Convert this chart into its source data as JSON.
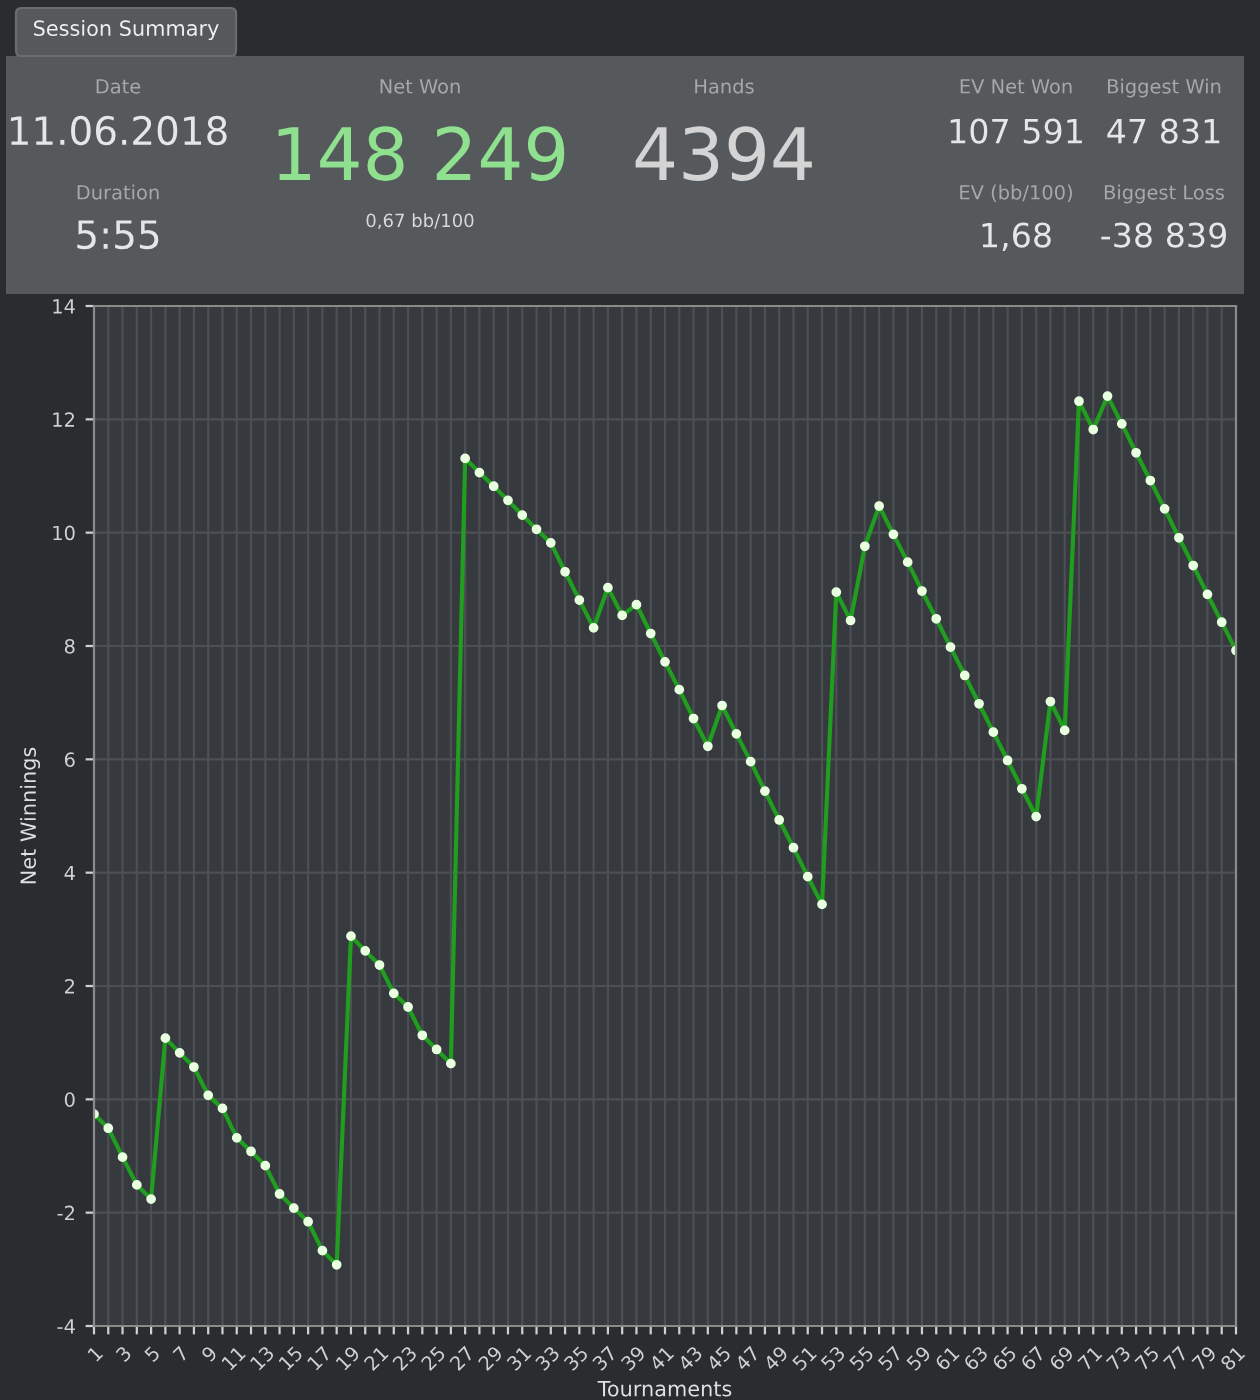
{
  "chart_data": [
    {
      "type": "other",
      "title": "Session Summary",
      "annotations": [
        "Date",
        "11.06.2018",
        "Duration",
        "5:55",
        "Net Won",
        "148 249",
        "0,67 bb/100",
        "Hands",
        "4394",
        "EV Net Won",
        "107 591",
        "EV (bb/100)",
        "1,68",
        "Biggest Win",
        "47 831",
        "Biggest Loss",
        "-38 839"
      ]
    },
    {
      "type": "line",
      "xlabel": "Tournaments",
      "ylabel": "Net Winnings",
      "grid": true,
      "marker": "circle",
      "line_style": "solid",
      "x": [
        1,
        2,
        3,
        4,
        5,
        6,
        7,
        8,
        9,
        10,
        11,
        12,
        13,
        14,
        15,
        16,
        17,
        18,
        19,
        20,
        21,
        22,
        23,
        24,
        25,
        26,
        27,
        28,
        29,
        30,
        31,
        32,
        33,
        34,
        35,
        36,
        37,
        38,
        39,
        40,
        41,
        42,
        43,
        44,
        45,
        46,
        47,
        48,
        49,
        50,
        51,
        52,
        53,
        54,
        55,
        56,
        57,
        58,
        59,
        60,
        61,
        62,
        63,
        64,
        65,
        66,
        67,
        68,
        69,
        70,
        71,
        72,
        73,
        74,
        75,
        76,
        77,
        78,
        79,
        80,
        81
      ],
      "series": [
        {
          "color": "#1f9e1f",
          "values": [
            -0.26,
            -0.51,
            -1.02,
            -1.51,
            -1.76,
            1.08,
            0.82,
            0.57,
            0.07,
            -0.16,
            -0.68,
            -0.92,
            -1.17,
            -1.67,
            -1.92,
            -2.16,
            -2.67,
            -2.92,
            2.88,
            2.62,
            2.37,
            1.87,
            1.63,
            1.13,
            0.88,
            0.63,
            11.31,
            11.06,
            10.82,
            10.57,
            10.31,
            10.06,
            9.82,
            9.31,
            8.81,
            8.32,
            9.03,
            8.54,
            8.73,
            8.22,
            7.72,
            7.23,
            6.72,
            6.23,
            6.95,
            6.45,
            5.96,
            5.44,
            4.93,
            4.44,
            3.93,
            3.44,
            8.95,
            8.45,
            9.76,
            10.47,
            9.97,
            9.48,
            8.97,
            8.48,
            7.98,
            7.48,
            6.98,
            6.48,
            5.98,
            5.48,
            4.99,
            7.02,
            6.51,
            12.32,
            11.82,
            12.41,
            11.92,
            11.41,
            10.92,
            10.42,
            9.91,
            9.42,
            8.91,
            8.42,
            7.92
          ]
        }
      ],
      "xlim": [
        1,
        81
      ],
      "xticks": [
        1,
        {
          "value": 2,
          "label": null
        },
        3,
        {
          "value": 4,
          "label": null
        },
        5,
        {
          "value": 6,
          "label": null
        },
        7,
        {
          "value": 8,
          "label": null
        },
        9,
        {
          "value": 10,
          "label": null
        },
        11,
        {
          "value": 12,
          "label": null
        },
        13,
        {
          "value": 14,
          "label": null
        },
        15,
        {
          "value": 16,
          "label": null
        },
        17,
        {
          "value": 18,
          "label": null
        },
        19,
        {
          "value": 20,
          "label": null
        },
        21,
        {
          "value": 22,
          "label": null
        },
        23,
        {
          "value": 24,
          "label": null
        },
        25,
        {
          "value": 26,
          "label": null
        },
        27,
        {
          "value": 28,
          "label": null
        },
        29,
        {
          "value": 30,
          "label": null
        },
        31,
        {
          "value": 32,
          "label": null
        },
        33,
        {
          "value": 34,
          "label": null
        },
        35,
        {
          "value": 36,
          "label": null
        },
        37,
        {
          "value": 38,
          "label": null
        },
        39,
        {
          "value": 40,
          "label": null
        },
        41,
        {
          "value": 42,
          "label": null
        },
        43,
        {
          "value": 44,
          "label": null
        },
        45,
        {
          "value": 46,
          "label": null
        },
        47,
        {
          "value": 48,
          "label": null
        },
        49,
        {
          "value": 50,
          "label": null
        },
        51,
        {
          "value": 52,
          "label": null
        },
        53,
        {
          "value": 54,
          "label": null
        },
        55,
        {
          "value": 56,
          "label": null
        },
        57,
        {
          "value": 58,
          "label": null
        },
        59,
        {
          "value": 60,
          "label": null
        },
        61,
        {
          "value": 62,
          "label": null
        },
        63,
        {
          "value": 64,
          "label": null
        },
        65,
        {
          "value": 66,
          "label": null
        },
        67,
        {
          "value": 68,
          "label": null
        },
        69,
        {
          "value": 70,
          "label": null
        },
        71,
        {
          "value": 72,
          "label": null
        },
        73,
        {
          "value": 74,
          "label": null
        },
        75,
        {
          "value": 76,
          "label": null
        },
        77,
        {
          "value": 78,
          "label": null
        },
        79,
        {
          "value": 80,
          "label": null
        },
        81
      ],
      "ylim": [
        -4,
        14
      ],
      "yticks": [
        -4,
        -2,
        0,
        2,
        4,
        6,
        8,
        10,
        12,
        14
      ]
    }
  ]
}
